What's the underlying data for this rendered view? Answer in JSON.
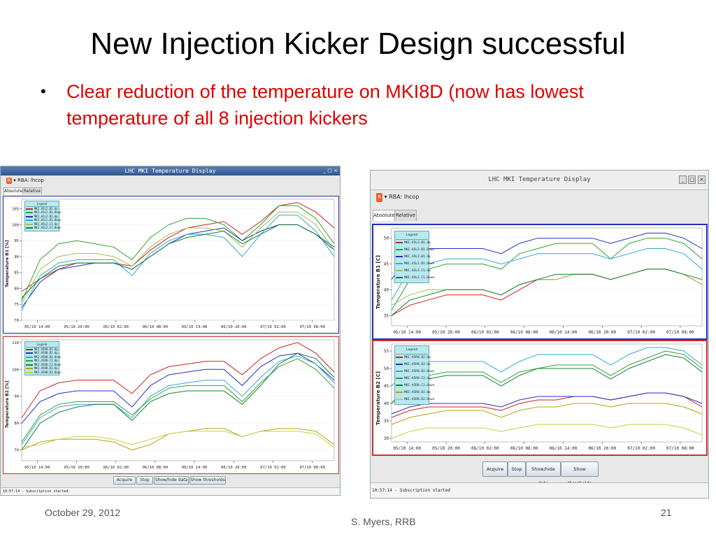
{
  "slide": {
    "title": "New Injection Kicker Design successful",
    "bullet_marker": "•",
    "bullet": "Clear reduction of the temperature on MKI8D (now has lowest temperature of all 8 injection kickers",
    "footer_date": "October 29, 2012",
    "footer_author": "S. Myers, RRB",
    "footer_page": "21"
  },
  "windows": [
    {
      "title": "LHC MKI Temperature Display",
      "menu_label": "RBA: lhcop",
      "tabs": [
        "Absolute",
        "Relative"
      ],
      "buttons": [
        "Acquire",
        "Stop",
        "Show/hide data",
        "Show thresholds"
      ],
      "status": "10:57:14 - Subscription started"
    },
    {
      "title": "LHC MKI Temperature Display",
      "menu_label": "RBA: lhcop",
      "tabs": [
        "Absolute",
        "Relative"
      ],
      "buttons": [
        "Acquire",
        "Stop",
        "Show/hide data",
        "Show thresholds"
      ],
      "status": "10:57:14 - Subscription started"
    }
  ],
  "chart_data": [
    {
      "type": "line",
      "window": 1,
      "ylabel": "Temperature B1 [%]",
      "x_ticks": [
        "05/10 14:00",
        "05/10 20:00",
        "06/10 02:00",
        "06/10 08:00",
        "06/10 14:00",
        "06/10 20:00",
        "07/10 02:00",
        "07/10 08:00"
      ],
      "y_ticks": [
        70,
        75,
        80,
        85,
        90,
        95,
        100,
        105
      ],
      "ylim": [
        70,
        108
      ],
      "legend_title": "Legend",
      "series": [
        {
          "name": "MKI.A5L2.B1.Up",
          "color": "#cc2020",
          "values": [
            79,
            83,
            86,
            88,
            88,
            88,
            87,
            92,
            96,
            99,
            100,
            101,
            97,
            101,
            106,
            107,
            104,
            99
          ]
        },
        {
          "name": "MKI.A5L2.B1.Down",
          "color": "#30a030",
          "values": [
            76,
            89,
            94,
            95,
            94,
            93,
            89,
            96,
            100,
            102,
            102,
            100,
            95,
            100,
            106,
            106,
            102,
            94
          ]
        },
        {
          "name": "MKI.A5L2.B1.Up",
          "color": "#2030c0",
          "values": [
            74,
            82,
            86,
            87,
            88,
            88,
            86,
            90,
            94,
            97,
            98,
            99,
            95,
            98,
            100,
            100,
            97,
            92
          ]
        },
        {
          "name": "MKI.A5L2.B1.Down",
          "color": "#30a8d0",
          "values": [
            73,
            84,
            88,
            89,
            89,
            89,
            84,
            91,
            95,
            97,
            97,
            96,
            90,
            97,
            103,
            103,
            98,
            90
          ]
        },
        {
          "name": "MKI.A5L2.C1.Up",
          "color": "#a0c050",
          "values": [
            75,
            86,
            90,
            91,
            91,
            90,
            87,
            93,
            97,
            99,
            99,
            98,
            93,
            99,
            104,
            104,
            100,
            92
          ]
        },
        {
          "name": "MKI.A5L2.C1.Down",
          "color": "#108030",
          "values": [
            77,
            83,
            87,
            88,
            88,
            88,
            86,
            90,
            94,
            96,
            97,
            98,
            94,
            97,
            100,
            100,
            97,
            93
          ]
        }
      ]
    },
    {
      "type": "line",
      "window": 1,
      "ylabel": "Temperature B2 [%]",
      "x_ticks": [
        "05/10 14:00",
        "05/10 20:00",
        "06/10 02:00",
        "06/10 08:00",
        "06/10 14:00",
        "06/10 20:00",
        "07/10 02:00",
        "07/10 08:00"
      ],
      "y_ticks": [
        70,
        80,
        90,
        100,
        110
      ],
      "ylim": [
        66,
        111
      ],
      "legend_title": "Legend",
      "series": [
        {
          "name": "MKI.A5R8.B2.Up",
          "color": "#cc2020",
          "values": [
            82,
            92,
            95,
            96,
            96,
            96,
            91,
            98,
            101,
            102,
            103,
            103,
            98,
            104,
            108,
            110,
            106,
            99
          ]
        },
        {
          "name": "MKI.A5R8.B2.Up",
          "color": "#2030c0",
          "values": [
            80,
            88,
            91,
            92,
            92,
            92,
            86,
            94,
            98,
            99,
            100,
            100,
            94,
            101,
            105,
            106,
            102,
            96
          ]
        },
        {
          "name": "MKI.A5R8.B2.Down",
          "color": "#30a8d0",
          "values": [
            72,
            82,
            86,
            87,
            87,
            87,
            82,
            90,
            94,
            95,
            96,
            96,
            90,
            97,
            103,
            105,
            102,
            95
          ]
        },
        {
          "name": "MKI.A5R8.C2.Up",
          "color": "#30a030",
          "values": [
            73,
            83,
            87,
            88,
            88,
            88,
            83,
            89,
            93,
            94,
            94,
            94,
            88,
            95,
            101,
            104,
            100,
            93
          ]
        },
        {
          "name": "MKI.A5R8.C2.Down",
          "color": "#108030",
          "values": [
            70,
            80,
            84,
            86,
            87,
            87,
            81,
            88,
            91,
            92,
            92,
            92,
            87,
            94,
            102,
            106,
            104,
            97
          ]
        },
        {
          "name": "MKI.A5R8.D2.Up",
          "color": "#b8a010",
          "values": [
            70,
            73,
            74,
            74,
            74,
            73,
            70,
            72,
            76,
            77,
            78,
            78,
            75,
            77,
            78,
            78,
            77,
            72
          ]
        },
        {
          "name": "MKI.A5R8.D2.Down",
          "color": "#c0d040",
          "values": [
            71,
            72,
            74,
            75,
            75,
            74,
            72,
            74,
            76,
            77,
            77,
            77,
            75,
            77,
            77,
            77,
            76,
            71
          ]
        }
      ]
    },
    {
      "type": "line",
      "window": 2,
      "ylabel": "Temperature B1 [C]",
      "x_ticks": [
        "05/10 14:00",
        "05/10 20:00",
        "06/10 02:00",
        "06/10 08:00",
        "06/10 14:00",
        "06/10 20:00",
        "07/10 02:00",
        "07/10 08:00"
      ],
      "y_ticks": [
        35,
        40,
        45,
        50
      ],
      "ylim": [
        33,
        52
      ],
      "legend_title": "Legend",
      "series": [
        {
          "name": "MKI.A5L2.B1.Up",
          "color": "#cc2020",
          "values": [
            35,
            37,
            38,
            39,
            39,
            39,
            38,
            40,
            42,
            42,
            43,
            43,
            42,
            43,
            44,
            44,
            43,
            41
          ]
        },
        {
          "name": "MKI.A5L2.B1.Down",
          "color": "#30a030",
          "values": [
            36,
            42,
            44,
            45,
            45,
            45,
            44,
            47,
            48,
            49,
            49,
            49,
            46,
            49,
            50,
            50,
            49,
            46
          ]
        },
        {
          "name": "MKI.A5L2.B1.Up",
          "color": "#2030c0",
          "values": [
            42,
            47,
            48,
            48,
            48,
            48,
            47,
            49,
            50,
            50,
            50,
            50,
            49,
            50,
            51,
            51,
            50,
            48
          ]
        },
        {
          "name": "MKI.A5L2.B1.Down",
          "color": "#30a8d0",
          "values": [
            38,
            44,
            45,
            46,
            46,
            46,
            45,
            46,
            47,
            47,
            47,
            47,
            46,
            47,
            48,
            48,
            47,
            44
          ]
        },
        {
          "name": "MKI.A5L2.C1.Up",
          "color": "#a0c050",
          "values": [
            37,
            39,
            40,
            40,
            40,
            40,
            39,
            41,
            42,
            42,
            43,
            43,
            42,
            43,
            44,
            44,
            43,
            41
          ]
        },
        {
          "name": "MKI.A5L2.C1.Down",
          "color": "#108030",
          "values": [
            35,
            38,
            39,
            40,
            40,
            40,
            39,
            41,
            42,
            43,
            43,
            43,
            42,
            43,
            44,
            44,
            43,
            42
          ]
        }
      ]
    },
    {
      "type": "line",
      "window": 2,
      "ylabel": "Temperature B2 [C]",
      "x_ticks": [
        "05/10 14:00",
        "05/10 20:00",
        "06/10 02:00",
        "06/10 08:00",
        "06/10 14:00",
        "06/10 20:00",
        "07/10 02:00",
        "07/10 08:00"
      ],
      "y_ticks": [
        30,
        35,
        40,
        45,
        50,
        55
      ],
      "ylim": [
        29,
        57
      ],
      "legend_title": "Legend",
      "series": [
        {
          "name": "MKI.A5R8.B2.Up",
          "color": "#cc2020",
          "values": [
            36,
            38,
            39,
            39,
            39,
            39,
            38,
            40,
            41,
            41,
            42,
            42,
            41,
            42,
            43,
            43,
            42,
            39
          ]
        },
        {
          "name": "MKI.A5R8.B2.Up",
          "color": "#2030c0",
          "values": [
            37,
            39,
            40,
            40,
            40,
            40,
            39,
            41,
            42,
            42,
            42,
            42,
            41,
            42,
            43,
            43,
            42,
            40
          ]
        },
        {
          "name": "MKI.A5R8.B2.Down",
          "color": "#30a8d0",
          "values": [
            45,
            50,
            52,
            52,
            52,
            52,
            49,
            52,
            54,
            54,
            54,
            54,
            51,
            54,
            56,
            56,
            55,
            51
          ]
        },
        {
          "name": "MKI.A5R8.C2.Up",
          "color": "#30a030",
          "values": [
            40,
            46,
            48,
            49,
            49,
            49,
            46,
            49,
            50,
            51,
            51,
            51,
            48,
            51,
            53,
            55,
            54,
            50
          ]
        },
        {
          "name": "MKI.A5R8.C2.Down",
          "color": "#108030",
          "values": [
            40,
            45,
            47,
            48,
            48,
            48,
            45,
            48,
            50,
            50,
            50,
            50,
            47,
            50,
            52,
            54,
            53,
            49
          ]
        },
        {
          "name": "MKI.A5R8.D2.Up",
          "color": "#b8a010",
          "values": [
            34,
            36,
            37,
            38,
            38,
            38,
            36,
            38,
            39,
            39,
            40,
            40,
            39,
            40,
            40,
            40,
            39,
            37
          ]
        },
        {
          "name": "MKI.A5R8.D2.Down",
          "color": "#c0d040",
          "values": [
            30,
            32,
            33,
            33,
            33,
            33,
            32,
            33,
            34,
            34,
            34,
            34,
            33,
            34,
            34,
            34,
            33,
            31
          ]
        }
      ]
    }
  ]
}
